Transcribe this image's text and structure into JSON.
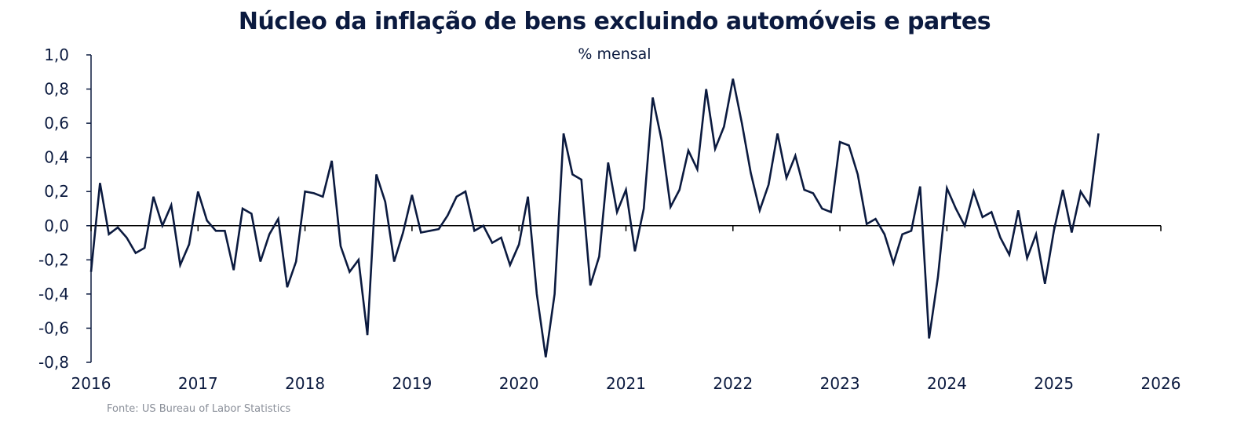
{
  "chart_data": {
    "type": "line",
    "title": "Núcleo da inflação de bens excluindo automóveis e partes",
    "subtitle": "% mensal",
    "source": "Fonte: US Bureau of Labor Statistics",
    "ylim": [
      -0.8,
      1.0
    ],
    "xlim": [
      2016,
      2026
    ],
    "y_ticks": [
      1.0,
      0.8,
      0.6,
      0.4,
      0.2,
      0.0,
      -0.2,
      -0.4,
      -0.6,
      -0.8
    ],
    "y_tick_labels": [
      "1,0",
      "0,8",
      "0,6",
      "0,4",
      "0,2",
      "0,0",
      "-0,2",
      "-0,4",
      "-0,6",
      "-0,8"
    ],
    "x_ticks": [
      2016,
      2017,
      2018,
      2019,
      2020,
      2021,
      2022,
      2023,
      2024,
      2025,
      2026
    ],
    "x_tick_labels": [
      "2016",
      "2017",
      "2018",
      "2019",
      "2020",
      "2021",
      "2022",
      "2023",
      "2024",
      "2025",
      "2026"
    ],
    "grid": false,
    "line_color": "#0b1a3f",
    "series": [
      {
        "start": "2016-01",
        "frequency": "monthly",
        "values": [
          -0.27,
          0.25,
          -0.05,
          -0.01,
          -0.07,
          -0.16,
          -0.13,
          0.17,
          0.0,
          0.12,
          -0.23,
          -0.11,
          0.2,
          0.03,
          -0.03,
          -0.03,
          -0.26,
          0.1,
          0.07,
          -0.21,
          -0.05,
          0.04,
          -0.36,
          -0.21,
          0.2,
          0.19,
          0.17,
          0.38,
          -0.12,
          -0.27,
          -0.2,
          -0.64,
          0.3,
          0.14,
          -0.21,
          -0.04,
          0.18,
          -0.04,
          -0.03,
          -0.02,
          0.06,
          0.17,
          0.2,
          -0.03,
          0.0,
          -0.1,
          -0.07,
          -0.23,
          -0.11,
          0.17,
          -0.4,
          -0.77,
          -0.4,
          0.54,
          0.3,
          0.27,
          -0.35,
          -0.18,
          0.37,
          0.08,
          0.21,
          -0.15,
          0.1,
          0.75,
          0.5,
          0.11,
          0.21,
          0.44,
          0.33,
          0.8,
          0.45,
          0.58,
          0.86,
          0.6,
          0.31,
          0.09,
          0.24,
          0.54,
          0.28,
          0.41,
          0.21,
          0.19,
          0.1,
          0.08,
          0.49,
          0.47,
          0.3,
          0.01,
          0.04,
          -0.05,
          -0.22,
          -0.05,
          -0.03,
          0.23,
          -0.66,
          -0.3,
          0.22,
          0.1,
          0.0,
          0.2,
          0.05,
          0.08,
          -0.07,
          -0.17,
          0.09,
          -0.19,
          -0.05,
          -0.34,
          -0.03,
          0.21,
          -0.04,
          0.2,
          0.12,
          0.54
        ]
      }
    ]
  }
}
